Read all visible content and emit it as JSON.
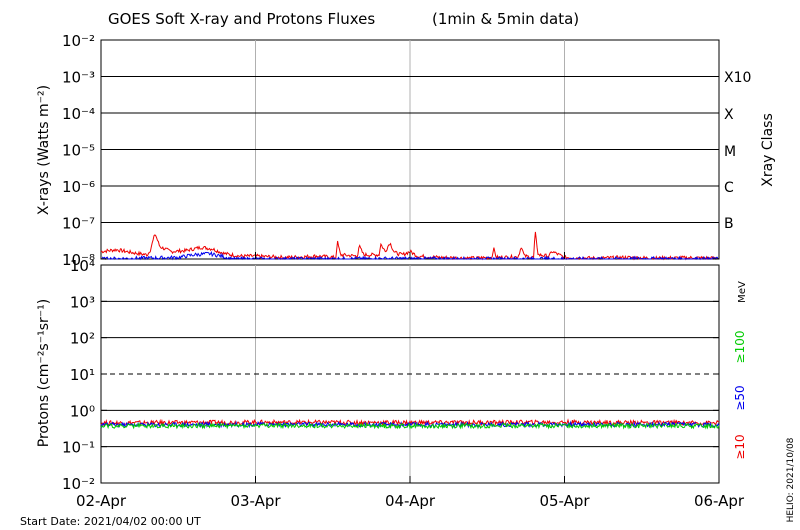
{
  "chart_data": {
    "type": "line",
    "title": "GOES Soft X-ray and Protons Fluxes",
    "subtitle": "(1min & 5min data)",
    "start_label": "Start Date: 2021/04/02 00:00 UT",
    "credit": "HELIO: 2021/10/08",
    "x_ticks": [
      "02-Apr",
      "03-Apr",
      "04-Apr",
      "05-Apr",
      "06-Apr"
    ],
    "xlim_days": [
      0,
      4
    ],
    "panels": [
      {
        "id": "xray",
        "ylabel": "X-rays (Watts m⁻²)",
        "ylim": [
          1e-08,
          0.01
        ],
        "log_scale": true,
        "y_ticks": [
          "10⁻²",
          "10⁻³",
          "10⁻⁴",
          "10⁻⁵",
          "10⁻⁶",
          "10⁻⁷",
          "10⁻⁸"
        ],
        "right_labels": [
          "X10",
          "X",
          "M",
          "C",
          "B"
        ],
        "right_title": "Xray Class",
        "series": [
          {
            "color": "#ee0000",
            "points": [
              [
                0,
                1.6e-08
              ],
              [
                0.1,
                1.8e-08
              ],
              [
                0.2,
                1.5e-08
              ],
              [
                0.3,
                1.3e-08
              ],
              [
                0.32,
                1.8e-08
              ],
              [
                0.35,
                5e-08
              ],
              [
                0.38,
                2.2e-08
              ],
              [
                0.45,
                1.6e-08
              ],
              [
                0.55,
                1.7e-08
              ],
              [
                0.65,
                2.1e-08
              ],
              [
                0.72,
                1.9e-08
              ],
              [
                0.8,
                1.4e-08
              ],
              [
                0.9,
                1.2e-08
              ],
              [
                1.0,
                1.2e-08
              ],
              [
                1.2,
                1.1e-08
              ],
              [
                1.4,
                1.2e-08
              ],
              [
                1.52,
                1.1e-08
              ],
              [
                1.53,
                3e-08
              ],
              [
                1.55,
                1.3e-08
              ],
              [
                1.66,
                1.2e-08
              ],
              [
                1.67,
                2.3e-08
              ],
              [
                1.7,
                1.3e-08
              ],
              [
                1.8,
                1.3e-08
              ],
              [
                1.81,
                2.6e-08
              ],
              [
                1.84,
                1.6e-08
              ],
              [
                1.87,
                2.8e-08
              ],
              [
                1.9,
                1.5e-08
              ],
              [
                1.95,
                1.3e-08
              ],
              [
                2.0,
                1.6e-08
              ],
              [
                2.05,
                1.2e-08
              ],
              [
                2.2,
                1.1e-08
              ],
              [
                2.4,
                1.05e-08
              ],
              [
                2.53,
                1.1e-08
              ],
              [
                2.54,
                2e-08
              ],
              [
                2.56,
                1.1e-08
              ],
              [
                2.7,
                1.15e-08
              ],
              [
                2.72,
                2.2e-08
              ],
              [
                2.74,
                1.2e-08
              ],
              [
                2.8,
                1.1e-08
              ],
              [
                2.81,
                5.5e-08
              ],
              [
                2.83,
                1.3e-08
              ],
              [
                2.9,
                1.2e-08
              ],
              [
                2.92,
                1.6e-08
              ],
              [
                3.0,
                1.1e-08
              ],
              [
                3.2,
                1.05e-08
              ],
              [
                3.4,
                1.1e-08
              ],
              [
                3.6,
                1.05e-08
              ],
              [
                3.8,
                1.08e-08
              ],
              [
                4.0,
                1.05e-08
              ]
            ]
          },
          {
            "color": "#0000ee",
            "points": [
              [
                0,
                1e-08
              ],
              [
                0.5,
                1.1e-08
              ],
              [
                0.6,
                1.3e-08
              ],
              [
                0.7,
                1.4e-08
              ],
              [
                0.78,
                1.2e-08
              ],
              [
                0.85,
                1e-08
              ],
              [
                1.2,
                1e-08
              ],
              [
                1.6,
                1.02e-08
              ],
              [
                2.0,
                1.03e-08
              ],
              [
                2.4,
                1e-08
              ],
              [
                2.8,
                1.02e-08
              ],
              [
                3.2,
                1e-08
              ],
              [
                3.6,
                1.02e-08
              ],
              [
                4.0,
                1e-08
              ]
            ]
          }
        ]
      },
      {
        "id": "protons",
        "ylabel": "Protons (cm⁻²s⁻¹sr⁻¹)",
        "ylim": [
          0.01,
          10000
        ],
        "log_scale": true,
        "y_ticks": [
          "10⁴",
          "10³",
          "10²",
          "10¹",
          "10⁰",
          "10⁻¹",
          "10⁻²"
        ],
        "threshold": 10,
        "right_title": "MeV",
        "series": [
          {
            "name": "≥10",
            "color": "#ee0000",
            "points": [
              [
                0,
                0.45
              ],
              [
                1,
                0.47
              ],
              [
                2,
                0.46
              ],
              [
                3,
                0.47
              ],
              [
                4,
                0.45
              ]
            ]
          },
          {
            "name": "≥50",
            "color": "#0000ee",
            "points": [
              [
                0,
                0.4
              ],
              [
                1,
                0.41
              ],
              [
                2,
                0.4
              ],
              [
                3,
                0.41
              ],
              [
                4,
                0.4
              ]
            ]
          },
          {
            "name": "≥100",
            "color": "#00cc00",
            "points": [
              [
                0,
                0.37
              ],
              [
                1,
                0.38
              ],
              [
                2,
                0.37
              ],
              [
                3,
                0.38
              ],
              [
                4,
                0.37
              ]
            ]
          }
        ]
      }
    ]
  }
}
